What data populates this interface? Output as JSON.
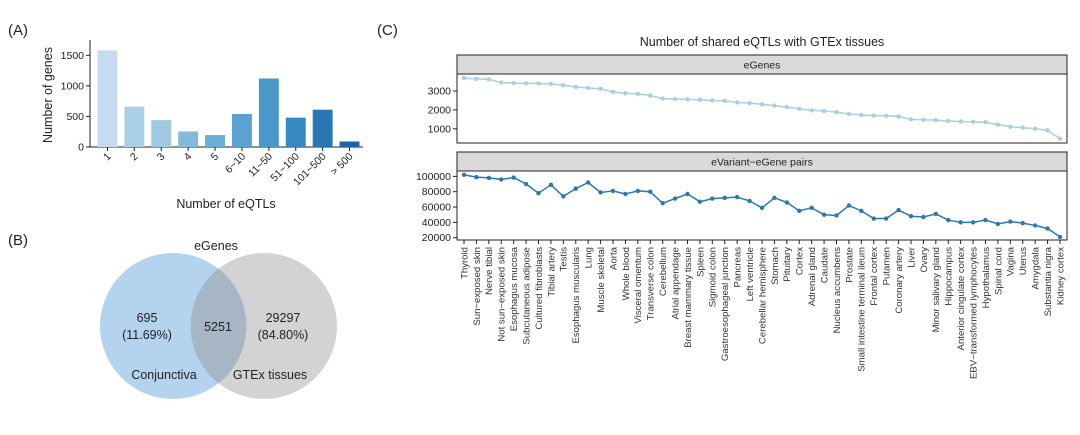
{
  "panels": {
    "a": "(A)",
    "b": "(B)",
    "c": "(C)"
  },
  "colors": {
    "bar_ramp": [
      "#c6dbef",
      "#aacfe6",
      "#9ecae1",
      "#84bbdd",
      "#6baed6",
      "#5ba2d0",
      "#4a97c9",
      "#3787c0",
      "#2a77b6",
      "#1c64a8",
      "#08519c"
    ],
    "egenes_line": "#a9cfe3",
    "pairs_line": "#2b79b0",
    "strip_bg": "#d9d9d9",
    "venn_left": "#a7cbec",
    "venn_right": "#c9c9c9"
  },
  "chart_data": [
    {
      "id": "A",
      "type": "bar",
      "title": "",
      "xlabel": "Number of eQTLs",
      "ylabel": "Number of genes",
      "categories": [
        "1",
        "2",
        "3",
        "4",
        "5",
        "6~10",
        "11~50",
        "51~100",
        "101~500",
        "> 500"
      ],
      "values": [
        1580,
        660,
        440,
        255,
        195,
        540,
        1120,
        480,
        610,
        90
      ],
      "ylim": [
        0,
        1750
      ],
      "yticks": [
        0,
        500,
        1000,
        1500
      ],
      "ytick_labels": [
        "0",
        "500",
        "1000",
        "1500"
      ],
      "grid": false
    },
    {
      "id": "C",
      "type": "line",
      "title": "Number of shared eQTLs with GTEx tissues",
      "xlabel": "",
      "categories": [
        "Thyroid",
        "Sun−exposed skin",
        "Nerve tibial",
        "Not sun−exposed skin",
        "Esophagus mucosa",
        "Subcutaneous adipose",
        "Cultured fibroblasts",
        "Tibial artery",
        "Testis",
        "Esophagus muscularis",
        "Lung",
        "Muscle skeletal",
        "Aorta",
        "Whole blood",
        "Visceral omentum",
        "Transverse colon",
        "Cerebellum",
        "Atrial appendage",
        "Breast mammary tissue",
        "Spleen",
        "Sigmoid colon",
        "Gastroesophageal junction",
        "Pancreas",
        "Left ventricle",
        "Cerebellar hemisphere",
        "Stomach",
        "Pituitary",
        "Cortex",
        "Adrenal gland",
        "Caudate",
        "Nucleus accumbens",
        "Prostate",
        "Small intestine terminal ileum",
        "Frontal cortex",
        "Putamen",
        "Coronary artery",
        "Liver",
        "Ovary",
        "Minor salivary gland",
        "Hippocampus",
        "Anterior cingulate cortex",
        "EBV−transformed lymphocytes",
        "Hypothalamus",
        "Spinal cord",
        "Vagina",
        "Uterus",
        "Amygdala",
        "Substantia nigra",
        "Kidney cortex"
      ],
      "series": [
        {
          "name": "eGenes",
          "ylim": [
            250,
            3900
          ],
          "yticks": [
            1000,
            2000,
            3000
          ],
          "ytick_labels": [
            "1000",
            "2000",
            "3000"
          ],
          "values": [
            3690,
            3640,
            3620,
            3450,
            3420,
            3410,
            3400,
            3380,
            3300,
            3220,
            3160,
            3120,
            2950,
            2880,
            2850,
            2760,
            2600,
            2580,
            2560,
            2540,
            2500,
            2480,
            2400,
            2360,
            2300,
            2230,
            2150,
            2060,
            1980,
            1940,
            1880,
            1790,
            1730,
            1700,
            1690,
            1650,
            1500,
            1480,
            1460,
            1420,
            1390,
            1370,
            1350,
            1220,
            1110,
            1060,
            1010,
            920,
            480
          ]
        },
        {
          "name": "eVariant−eGene pairs",
          "ylim": [
            17000,
            107000
          ],
          "yticks": [
            20000,
            40000,
            60000,
            80000,
            100000
          ],
          "ytick_labels": [
            "20000",
            "40000",
            "60000",
            "80000",
            "100000"
          ],
          "values": [
            102000,
            99000,
            98000,
            96000,
            98500,
            90000,
            78000,
            89000,
            74000,
            84000,
            92000,
            79000,
            81000,
            77000,
            81000,
            80000,
            65000,
            71000,
            77000,
            67000,
            71000,
            72000,
            73000,
            68000,
            59000,
            72000,
            66000,
            55000,
            59000,
            50000,
            49000,
            62000,
            55000,
            45000,
            45000,
            56000,
            48000,
            47000,
            51000,
            43000,
            40000,
            40000,
            43000,
            38000,
            41000,
            39000,
            36000,
            32000,
            21000
          ]
        }
      ]
    }
  ],
  "venn": {
    "title": "eGenes",
    "left_count": "695",
    "left_pct": "(11.69%)",
    "overlap_count": "5251",
    "right_count": "29297",
    "right_pct": "(84.80%)",
    "left_label": "Conjunctiva",
    "right_label": "GTEx tissues"
  }
}
